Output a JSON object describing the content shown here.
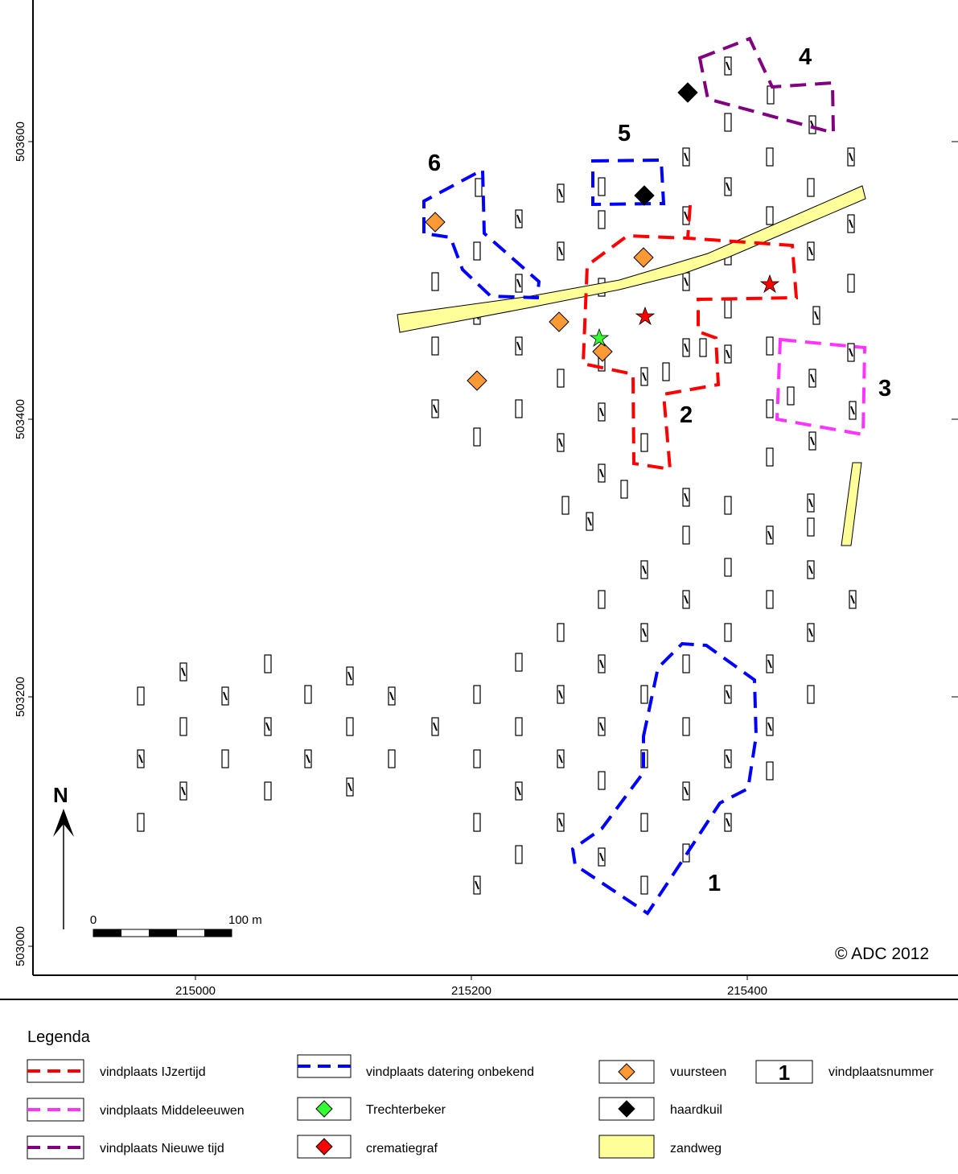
{
  "map": {
    "copyright": "© ADC 2012",
    "north_label": "N",
    "scale": {
      "start_label": "0",
      "end_label": "100 m"
    },
    "x_ticks": [
      "215000",
      "215200",
      "215400"
    ],
    "y_ticks": [
      "503600",
      "503400",
      "503200",
      "503000"
    ],
    "site_numbers": [
      "1",
      "2",
      "3",
      "4",
      "5",
      "6"
    ]
  },
  "legend": {
    "title": "Legenda",
    "items": [
      {
        "label": "vindplaats IJzertijd",
        "symbol": "dashed-line",
        "color": "#ff0000"
      },
      {
        "label": "vindplaats Middeleeuwen",
        "symbol": "dashed-line",
        "color": "#ff33ff"
      },
      {
        "label": "vindplaats Nieuwe tijd",
        "symbol": "dashed-line",
        "color": "#800080"
      },
      {
        "label": "vindplaats datering onbekend",
        "symbol": "dashed-line",
        "color": "#0000ff"
      },
      {
        "label": "Trechterbeker",
        "symbol": "diamond",
        "color": "#33ff33"
      },
      {
        "label": "crematiegraf",
        "symbol": "diamond",
        "color": "#ff0000"
      },
      {
        "label": "vuursteen",
        "symbol": "diamond",
        "color": "#ff9933"
      },
      {
        "label": "haardkuil",
        "symbol": "diamond",
        "color": "#000000"
      },
      {
        "label": "zandweg",
        "symbol": "fill",
        "color": "#ffff99"
      },
      {
        "label": "vindplaatsnummer",
        "symbol": "number-box",
        "box_text": "1"
      }
    ]
  },
  "colors": {
    "ijzertijd": "#ff0000",
    "middeleeuwen": "#ff33ff",
    "nieuwe_tijd": "#800080",
    "onbekend": "#0000ff",
    "road": "#ffff99",
    "vuursteen": "#ff9933",
    "trechterbeker": "#33ff33",
    "crematiegraf": "#ff0000",
    "haardkuil": "#000000"
  }
}
